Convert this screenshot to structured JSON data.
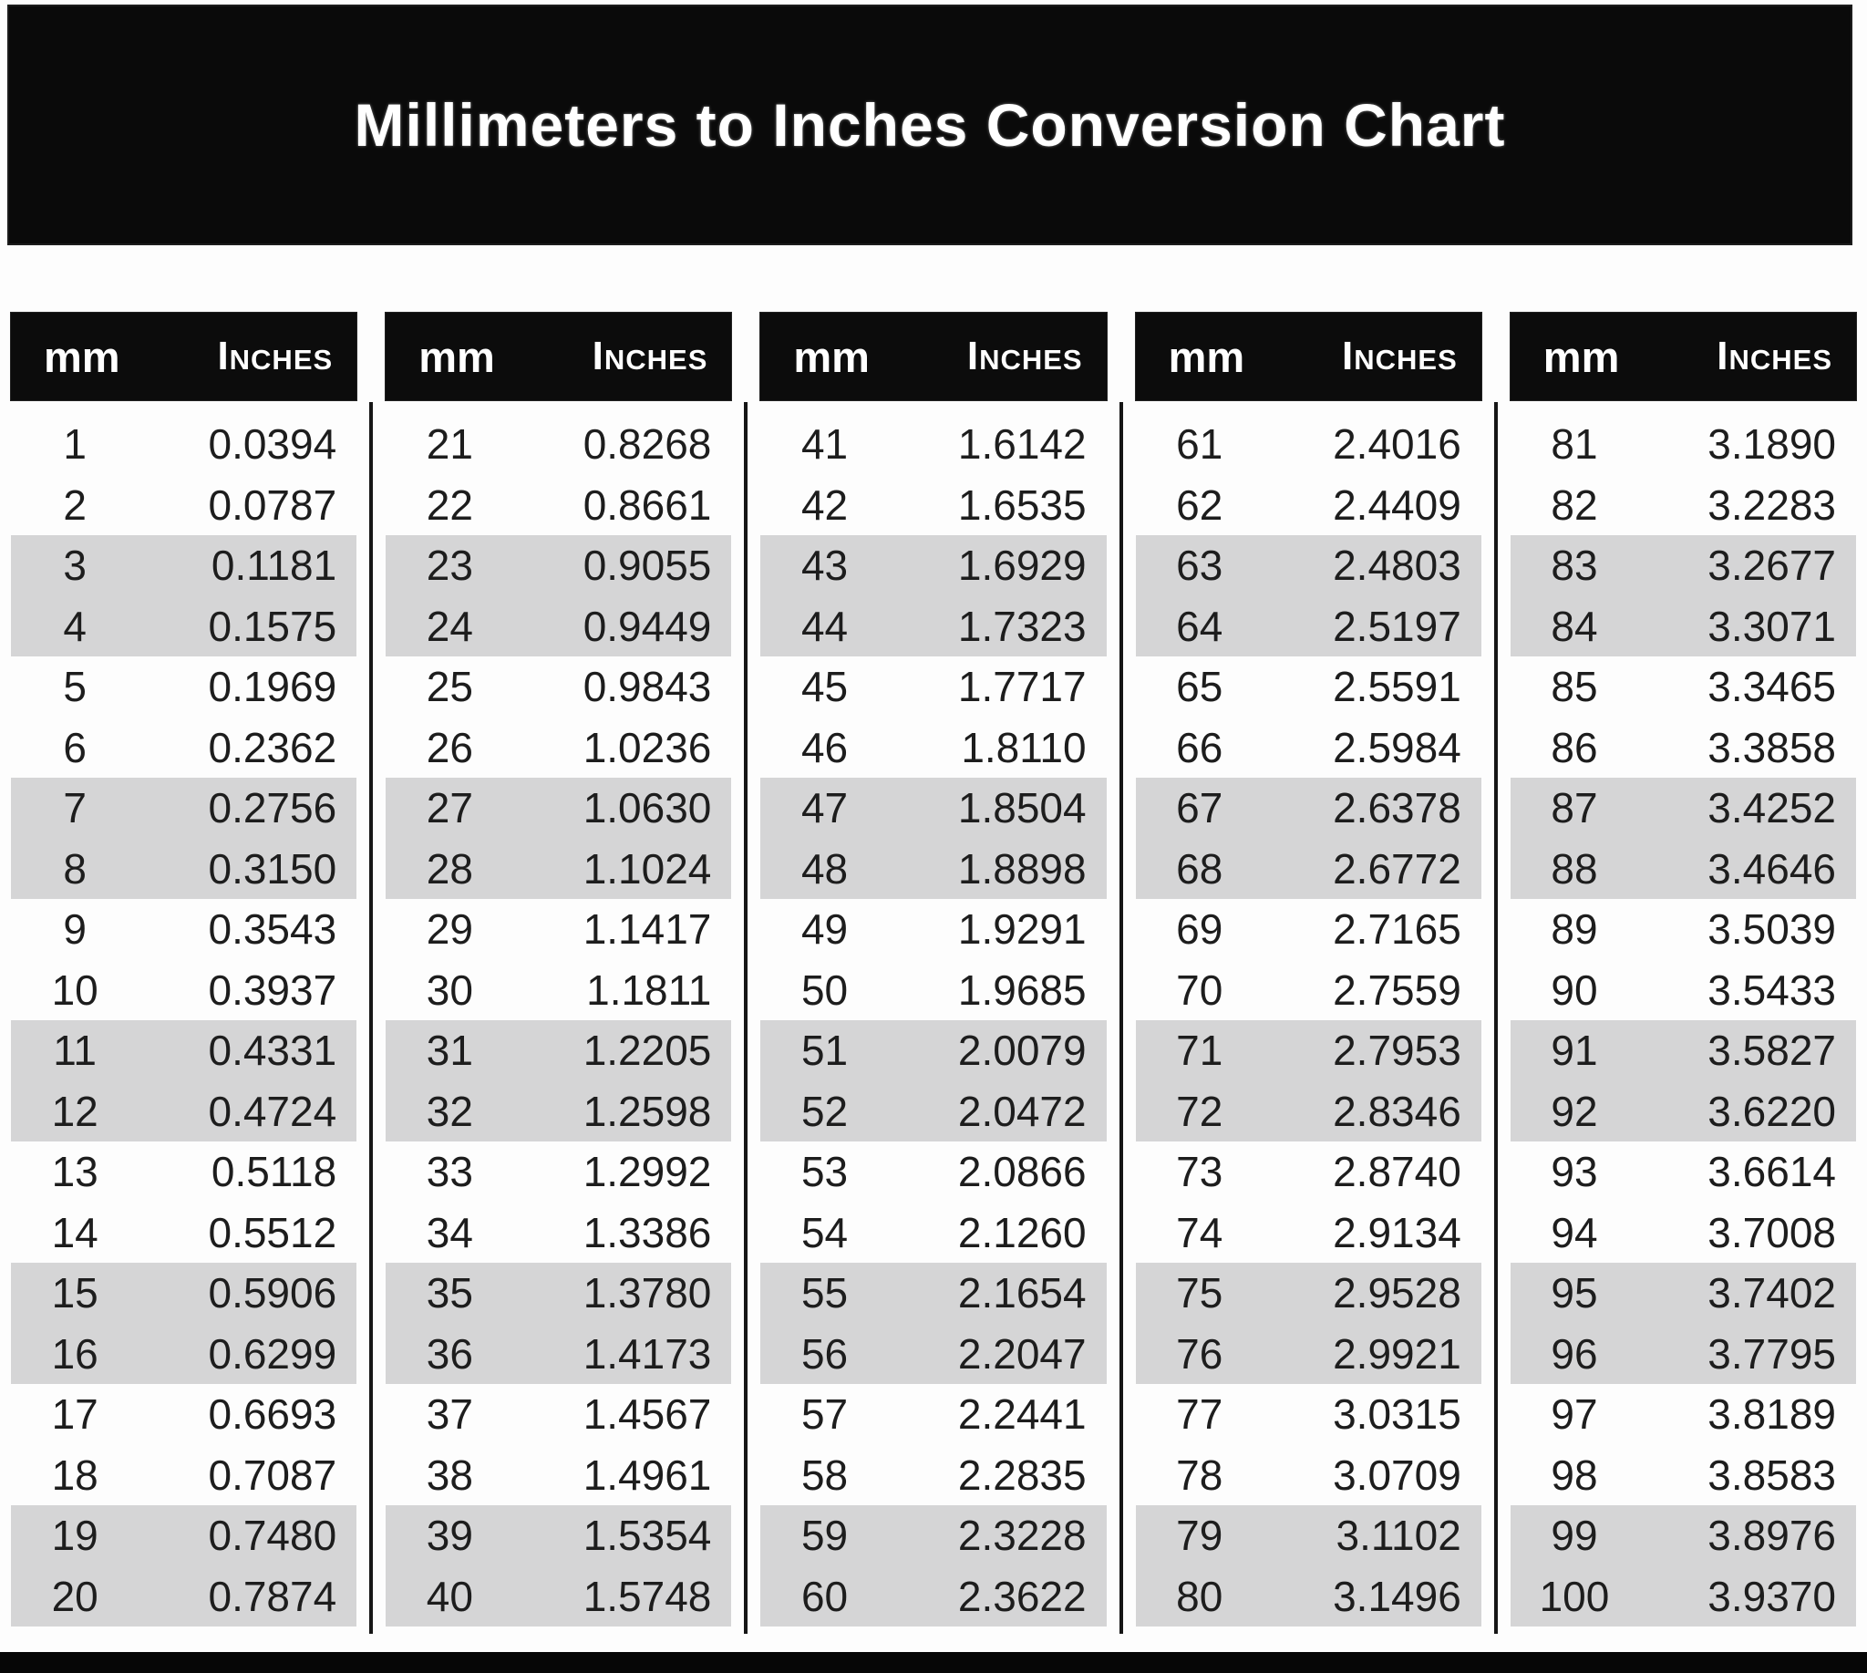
{
  "title": "Millimeters to Inches Conversion Chart",
  "column_header": {
    "mm": "mm",
    "inches": "Inches"
  },
  "colors": {
    "banner_background": "#0a0a0a",
    "header_background": "#0c0c0c",
    "header_text": "#ffffff",
    "row_shade": "#d5d5d6",
    "body_text": "#1d1d1d",
    "divider": "#161616"
  },
  "layout_hints": {
    "group_count": 5,
    "rows_per_group": 20,
    "shaded_pair_pattern": "rows 3-4, 7-8, 11-12, 15-16, 19-20 of each group"
  },
  "chart_data": {
    "type": "table",
    "title": "Millimeters to Inches Conversion Chart",
    "columns": [
      "mm",
      "Inches"
    ],
    "rows": [
      [
        "1",
        "0.0394"
      ],
      [
        "2",
        "0.0787"
      ],
      [
        "3",
        "0.1181"
      ],
      [
        "4",
        "0.1575"
      ],
      [
        "5",
        "0.1969"
      ],
      [
        "6",
        "0.2362"
      ],
      [
        "7",
        "0.2756"
      ],
      [
        "8",
        "0.3150"
      ],
      [
        "9",
        "0.3543"
      ],
      [
        "10",
        "0.3937"
      ],
      [
        "11",
        "0.4331"
      ],
      [
        "12",
        "0.4724"
      ],
      [
        "13",
        "0.5118"
      ],
      [
        "14",
        "0.5512"
      ],
      [
        "15",
        "0.5906"
      ],
      [
        "16",
        "0.6299"
      ],
      [
        "17",
        "0.6693"
      ],
      [
        "18",
        "0.7087"
      ],
      [
        "19",
        "0.7480"
      ],
      [
        "20",
        "0.7874"
      ],
      [
        "21",
        "0.8268"
      ],
      [
        "22",
        "0.8661"
      ],
      [
        "23",
        "0.9055"
      ],
      [
        "24",
        "0.9449"
      ],
      [
        "25",
        "0.9843"
      ],
      [
        "26",
        "1.0236"
      ],
      [
        "27",
        "1.0630"
      ],
      [
        "28",
        "1.1024"
      ],
      [
        "29",
        "1.1417"
      ],
      [
        "30",
        "1.1811"
      ],
      [
        "31",
        "1.2205"
      ],
      [
        "32",
        "1.2598"
      ],
      [
        "33",
        "1.2992"
      ],
      [
        "34",
        "1.3386"
      ],
      [
        "35",
        "1.3780"
      ],
      [
        "36",
        "1.4173"
      ],
      [
        "37",
        "1.4567"
      ],
      [
        "38",
        "1.4961"
      ],
      [
        "39",
        "1.5354"
      ],
      [
        "40",
        "1.5748"
      ],
      [
        "41",
        "1.6142"
      ],
      [
        "42",
        "1.6535"
      ],
      [
        "43",
        "1.6929"
      ],
      [
        "44",
        "1.7323"
      ],
      [
        "45",
        "1.7717"
      ],
      [
        "46",
        "1.8110"
      ],
      [
        "47",
        "1.8504"
      ],
      [
        "48",
        "1.8898"
      ],
      [
        "49",
        "1.9291"
      ],
      [
        "50",
        "1.9685"
      ],
      [
        "51",
        "2.0079"
      ],
      [
        "52",
        "2.0472"
      ],
      [
        "53",
        "2.0866"
      ],
      [
        "54",
        "2.1260"
      ],
      [
        "55",
        "2.1654"
      ],
      [
        "56",
        "2.2047"
      ],
      [
        "57",
        "2.2441"
      ],
      [
        "58",
        "2.2835"
      ],
      [
        "59",
        "2.3228"
      ],
      [
        "60",
        "2.3622"
      ],
      [
        "61",
        "2.4016"
      ],
      [
        "62",
        "2.4409"
      ],
      [
        "63",
        "2.4803"
      ],
      [
        "64",
        "2.5197"
      ],
      [
        "65",
        "2.5591"
      ],
      [
        "66",
        "2.5984"
      ],
      [
        "67",
        "2.6378"
      ],
      [
        "68",
        "2.6772"
      ],
      [
        "69",
        "2.7165"
      ],
      [
        "70",
        "2.7559"
      ],
      [
        "71",
        "2.7953"
      ],
      [
        "72",
        "2.8346"
      ],
      [
        "73",
        "2.8740"
      ],
      [
        "74",
        "2.9134"
      ],
      [
        "75",
        "2.9528"
      ],
      [
        "76",
        "2.9921"
      ],
      [
        "77",
        "3.0315"
      ],
      [
        "78",
        "3.0709"
      ],
      [
        "79",
        "3.1102"
      ],
      [
        "80",
        "3.1496"
      ],
      [
        "81",
        "3.1890"
      ],
      [
        "82",
        "3.2283"
      ],
      [
        "83",
        "3.2677"
      ],
      [
        "84",
        "3.3071"
      ],
      [
        "85",
        "3.3465"
      ],
      [
        "86",
        "3.3858"
      ],
      [
        "87",
        "3.4252"
      ],
      [
        "88",
        "3.4646"
      ],
      [
        "89",
        "3.5039"
      ],
      [
        "90",
        "3.5433"
      ],
      [
        "91",
        "3.5827"
      ],
      [
        "92",
        "3.6220"
      ],
      [
        "93",
        "3.6614"
      ],
      [
        "94",
        "3.7008"
      ],
      [
        "95",
        "3.7402"
      ],
      [
        "96",
        "3.7795"
      ],
      [
        "97",
        "3.8189"
      ],
      [
        "98",
        "3.8583"
      ],
      [
        "99",
        "3.8976"
      ],
      [
        "100",
        "3.9370"
      ]
    ]
  }
}
